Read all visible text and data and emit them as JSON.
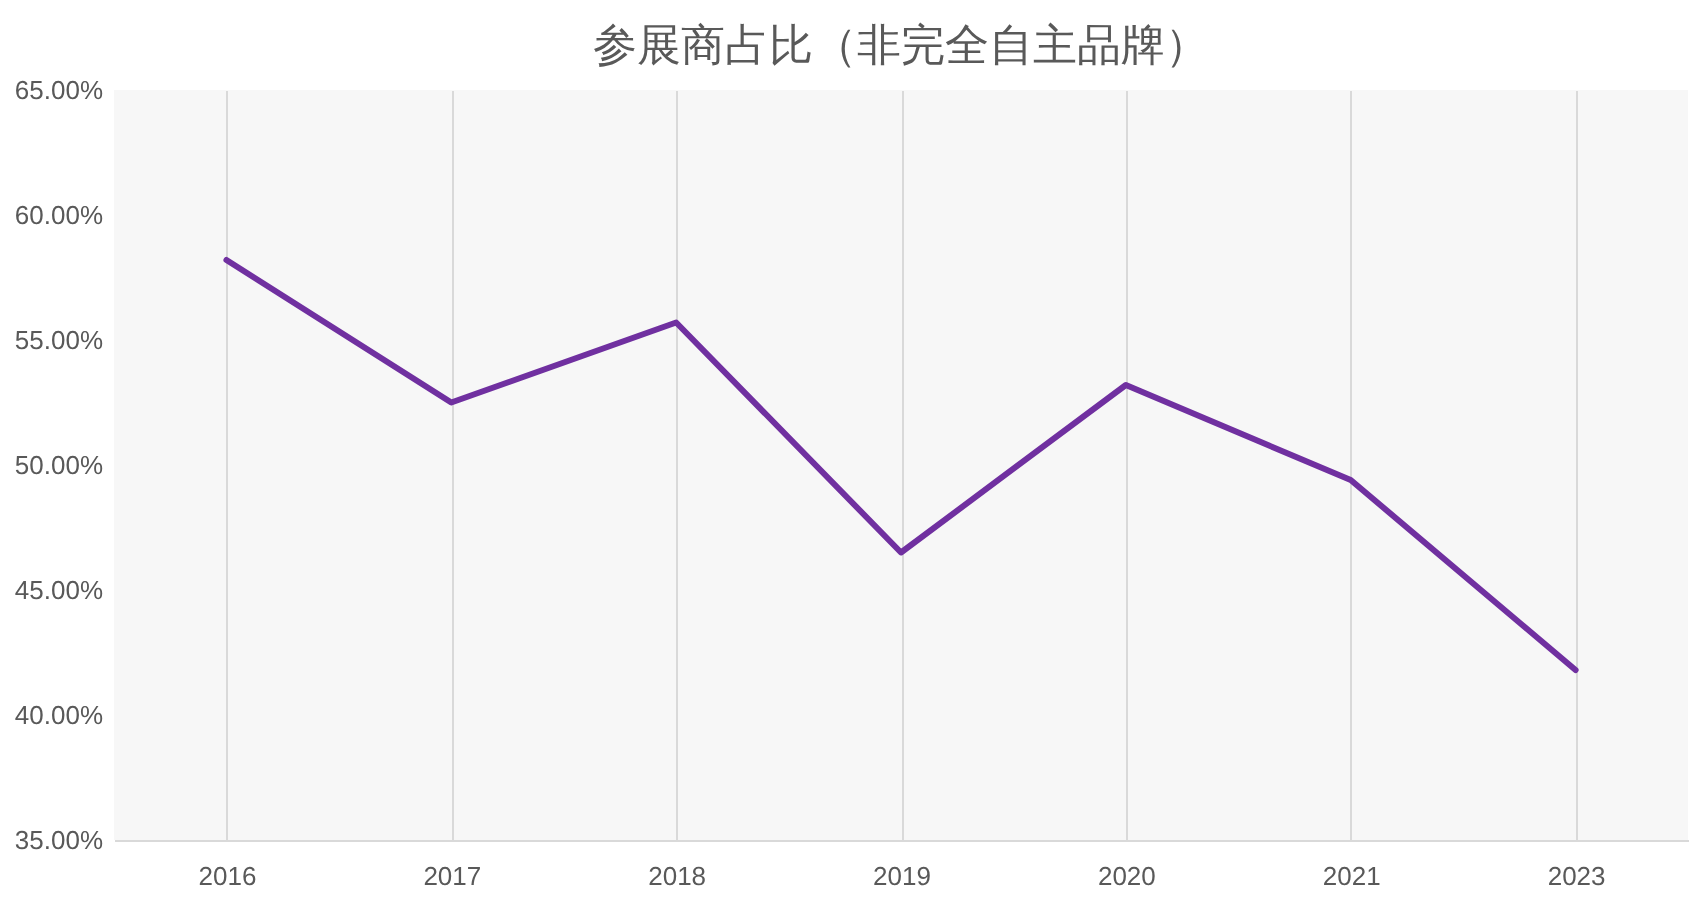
{
  "chart_data": {
    "type": "line",
    "title": "参展商占比（非完全自主品牌）",
    "categories": [
      "2016",
      "2017",
      "2018",
      "2019",
      "2020",
      "2021",
      "2023"
    ],
    "series": [
      {
        "color": "#7030a0",
        "values": [
          58.2,
          52.5,
          55.7,
          46.5,
          53.2,
          49.4,
          41.8
        ]
      }
    ],
    "ylim": [
      35,
      65
    ],
    "yticks": [
      {
        "value": 35,
        "label": "35.00%"
      },
      {
        "value": 40,
        "label": "40.00%"
      },
      {
        "value": 45,
        "label": "45.00%"
      },
      {
        "value": 50,
        "label": "50.00%"
      },
      {
        "value": 55,
        "label": "55.00%"
      },
      {
        "value": 60,
        "label": "60.00%"
      },
      {
        "value": 65,
        "label": "65.00%"
      }
    ],
    "grid": "x",
    "marker": "none",
    "line_style": "solid"
  }
}
